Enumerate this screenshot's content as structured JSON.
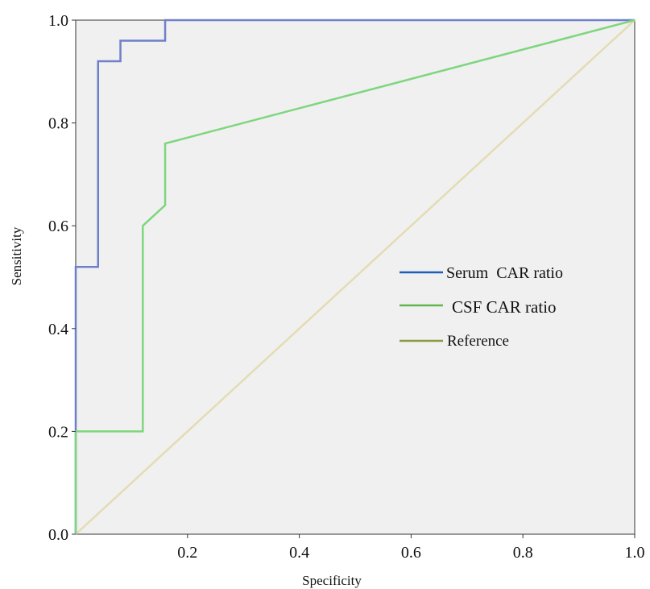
{
  "chart_data": {
    "type": "line",
    "xlabel": "Specificity",
    "ylabel": "Sensitivity",
    "xlim": [
      0,
      1
    ],
    "ylim": [
      0,
      1
    ],
    "x_ticks": [
      "0.2",
      "0.4",
      "0.6",
      "0.8",
      "1.0"
    ],
    "y_ticks": [
      "0.0",
      "0.2",
      "0.4",
      "0.6",
      "0.8",
      "1.0"
    ],
    "grid": false,
    "legend_position": "right",
    "series": [
      {
        "name": "Serum  CAR ratio",
        "color": "#6f7fc9",
        "legend_color": "#1f5fb8",
        "points": [
          [
            0,
            0
          ],
          [
            0,
            0.52
          ],
          [
            0.04,
            0.52
          ],
          [
            0.04,
            0.92
          ],
          [
            0.08,
            0.92
          ],
          [
            0.08,
            0.96
          ],
          [
            0.16,
            0.96
          ],
          [
            0.16,
            1.0
          ],
          [
            1.0,
            1.0
          ]
        ]
      },
      {
        "name": "CSF CAR ratio",
        "color": "#7ed67e",
        "legend_color": "#62b64a",
        "points": [
          [
            0,
            0
          ],
          [
            0,
            0.2
          ],
          [
            0.12,
            0.2
          ],
          [
            0.12,
            0.6
          ],
          [
            0.14,
            0.62
          ],
          [
            0.16,
            0.64
          ],
          [
            0.16,
            0.76
          ],
          [
            1.0,
            1.0
          ]
        ]
      },
      {
        "name": "Reference",
        "color": "#e3dcb4",
        "legend_color": "#8a9a3c",
        "points": [
          [
            0,
            0
          ],
          [
            1.0,
            1.0
          ]
        ]
      }
    ]
  }
}
